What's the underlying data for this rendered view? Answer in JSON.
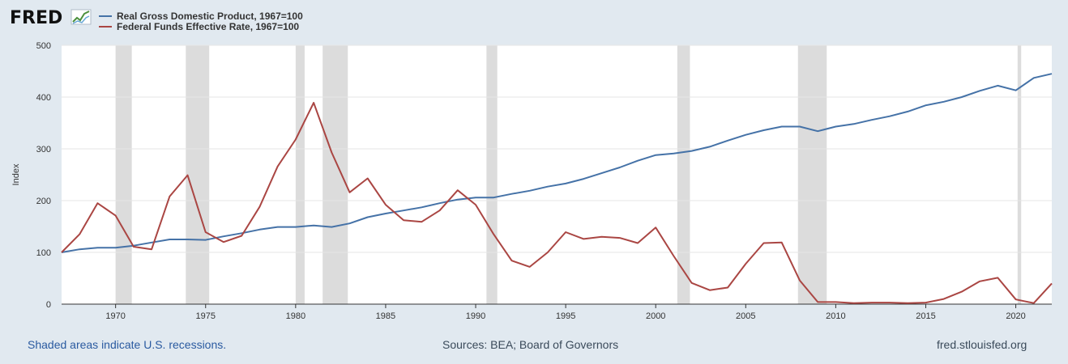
{
  "logo": {
    "text": "FRED",
    "icon": "fred-sparkline-icon"
  },
  "footer": {
    "recession_note": "Shaded areas indicate U.S. recessions.",
    "sources": "Sources: BEA; Board of Governors",
    "site": "fred.stlouisfed.org"
  },
  "chart_data": {
    "type": "line",
    "ylabel": "Index",
    "ylim": [
      0,
      500
    ],
    "xlim": [
      1967,
      2022
    ],
    "yticks": [
      0,
      100,
      200,
      300,
      400,
      500
    ],
    "xticks": [
      1970,
      1975,
      1980,
      1985,
      1990,
      1995,
      2000,
      2005,
      2010,
      2015,
      2020
    ],
    "grid": true,
    "legend_position": "top-left",
    "recessions": [
      [
        1970.0,
        1970.9
      ],
      [
        1973.9,
        1975.2
      ],
      [
        1980.0,
        1980.5
      ],
      [
        1981.5,
        1982.9
      ],
      [
        1990.6,
        1991.2
      ],
      [
        2001.2,
        2001.9
      ],
      [
        2007.9,
        2009.5
      ],
      [
        2020.1,
        2020.3
      ]
    ],
    "colors": {
      "gdp": "#4572a7",
      "ffr": "#aa4643",
      "recession": "#dcdcdc",
      "grid": "#e6e6e6"
    },
    "x": [
      1967,
      1968,
      1969,
      1970,
      1971,
      1972,
      1973,
      1974,
      1975,
      1976,
      1977,
      1978,
      1979,
      1980,
      1981,
      1982,
      1983,
      1984,
      1985,
      1986,
      1987,
      1988,
      1989,
      1990,
      1991,
      1992,
      1993,
      1994,
      1995,
      1996,
      1997,
      1998,
      1999,
      2000,
      2001,
      2002,
      2003,
      2004,
      2005,
      2006,
      2007,
      2008,
      2009,
      2010,
      2011,
      2012,
      2013,
      2014,
      2015,
      2016,
      2017,
      2018,
      2019,
      2020,
      2021,
      2022
    ],
    "series": [
      {
        "name": "Real Gross Domestic Product, 1967=100",
        "color": "#4572a7",
        "values": [
          100,
          106,
          109,
          109,
          113,
          119,
          125,
          125,
          124,
          131,
          137,
          144,
          149,
          149,
          152,
          149,
          156,
          168,
          175,
          181,
          187,
          195,
          202,
          206,
          206,
          213,
          219,
          227,
          233,
          242,
          253,
          264,
          277,
          288,
          291,
          296,
          304,
          316,
          327,
          336,
          343,
          343,
          334,
          343,
          348,
          356,
          363,
          372,
          384,
          391,
          400,
          412,
          422,
          413,
          437,
          445
        ]
      },
      {
        "name": "Federal Funds Effective Rate, 1967=100",
        "color": "#aa4643",
        "values": [
          100,
          135,
          195,
          171,
          111,
          106,
          208,
          249,
          139,
          120,
          132,
          188,
          266,
          318,
          389,
          293,
          216,
          243,
          192,
          162,
          159,
          181,
          220,
          192,
          135,
          84,
          72,
          100,
          139,
          126,
          130,
          128,
          118,
          148,
          93,
          41,
          27,
          32,
          78,
          118,
          119,
          46,
          4,
          4,
          2,
          3,
          3,
          2,
          3,
          10,
          24,
          44,
          51,
          9,
          2,
          40
        ]
      }
    ]
  }
}
